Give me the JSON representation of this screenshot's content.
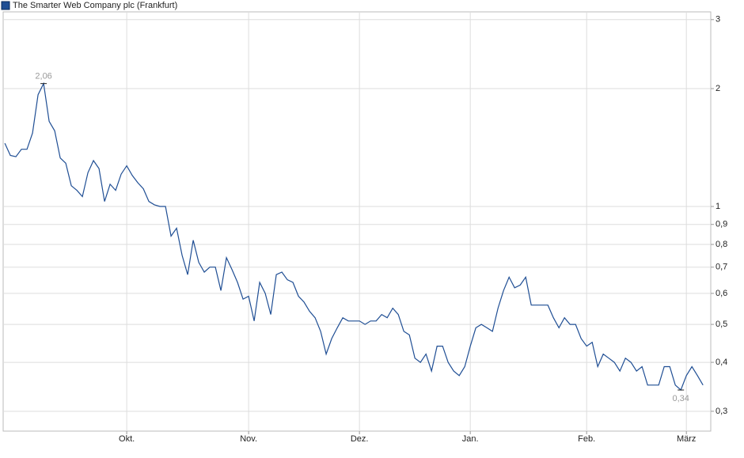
{
  "chart_data": {
    "type": "line",
    "title": "The Smarter Web Company plc (Frankfurt)",
    "series": [
      {
        "name": "The Smarter Web Company plc (Frankfurt)",
        "color": "#1f4e94",
        "values": [
          1.45,
          1.35,
          1.34,
          1.4,
          1.4,
          1.54,
          1.93,
          2.06,
          1.65,
          1.56,
          1.33,
          1.29,
          1.13,
          1.1,
          1.06,
          1.22,
          1.31,
          1.25,
          1.03,
          1.14,
          1.1,
          1.21,
          1.27,
          1.2,
          1.15,
          1.11,
          1.03,
          1.01,
          1.0,
          1.0,
          0.84,
          0.88,
          0.75,
          0.67,
          0.82,
          0.72,
          0.68,
          0.7,
          0.7,
          0.61,
          0.74,
          0.69,
          0.64,
          0.58,
          0.59,
          0.51,
          0.64,
          0.6,
          0.53,
          0.67,
          0.68,
          0.65,
          0.64,
          0.59,
          0.57,
          0.54,
          0.52,
          0.48,
          0.42,
          0.46,
          0.49,
          0.52,
          0.51,
          0.51,
          0.51,
          0.5,
          0.51,
          0.51,
          0.53,
          0.52,
          0.55,
          0.53,
          0.48,
          0.47,
          0.41,
          0.4,
          0.42,
          0.38,
          0.44,
          0.44,
          0.4,
          0.38,
          0.37,
          0.39,
          0.44,
          0.49,
          0.5,
          0.49,
          0.48,
          0.55,
          0.61,
          0.66,
          0.62,
          0.63,
          0.66,
          0.56,
          0.56,
          0.56,
          0.56,
          0.52,
          0.49,
          0.52,
          0.5,
          0.5,
          0.46,
          0.44,
          0.45,
          0.39,
          0.42,
          0.41,
          0.4,
          0.38,
          0.41,
          0.4,
          0.38,
          0.39,
          0.35,
          0.35,
          0.35,
          0.39,
          0.39,
          0.35,
          0.34,
          0.37,
          0.39,
          0.37,
          0.35
        ]
      }
    ],
    "annotations": [
      {
        "text": "2,06",
        "value": 2.06
      },
      {
        "text": "0,34",
        "value": 0.34
      }
    ],
    "xlim": [
      -0.3,
      127.4
    ],
    "xticks": [
      {
        "value": 22,
        "label": "Okt."
      },
      {
        "value": 44,
        "label": "Nov."
      },
      {
        "value": 64,
        "label": "Dez."
      },
      {
        "value": 84,
        "label": "Jan."
      },
      {
        "value": 105,
        "label": "Feb."
      },
      {
        "value": 123,
        "label": "März"
      }
    ],
    "ylim": [
      0.267,
      3.14
    ],
    "log_scale": true,
    "yticks": [
      {
        "value": 0.3,
        "label": "0,3"
      },
      {
        "value": 0.4,
        "label": "0,4"
      },
      {
        "value": 0.5,
        "label": "0,5"
      },
      {
        "value": 0.6,
        "label": "0,6"
      },
      {
        "value": 0.7,
        "label": "0,7"
      },
      {
        "value": 0.8,
        "label": "0,8"
      },
      {
        "value": 0.9,
        "label": "0,9"
      },
      1,
      2,
      3
    ],
    "grid": true
  }
}
